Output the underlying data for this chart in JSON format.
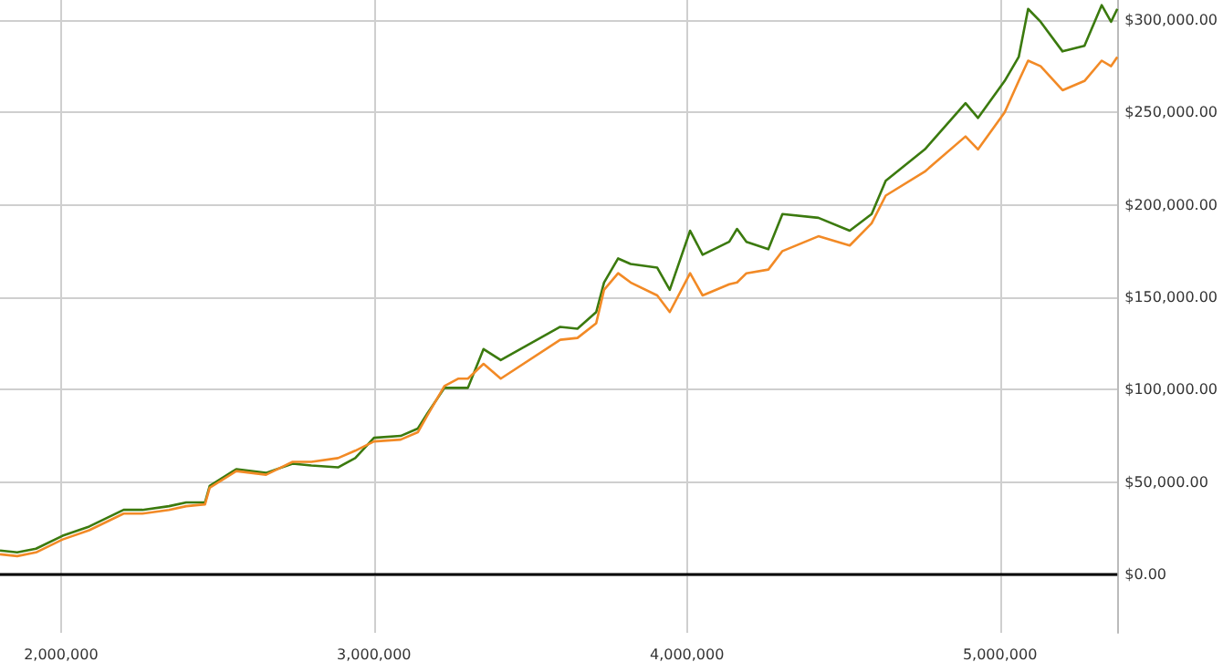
{
  "chart_data": {
    "type": "line",
    "x": [
      1805000,
      1860000,
      1920000,
      2005000,
      2090000,
      2200000,
      2260000,
      2345000,
      2400000,
      2460000,
      2475000,
      2560000,
      2655000,
      2740000,
      2800000,
      2885000,
      2940000,
      3000000,
      3085000,
      3140000,
      3170000,
      3225000,
      3270000,
      3300000,
      3350000,
      3405000,
      3595000,
      3650000,
      3710000,
      3735000,
      3780000,
      3820000,
      3905000,
      3945000,
      4010000,
      4050000,
      4135000,
      4160000,
      4190000,
      4260000,
      4305000,
      4420000,
      4520000,
      4590000,
      4635000,
      4760000,
      4890000,
      4930000,
      5015000,
      5060000,
      5090000,
      5130000,
      5200000,
      5270000,
      5325000,
      5355000,
      5375000
    ],
    "series": [
      {
        "color": "#3b7a0e",
        "values": [
          13000,
          12000,
          14000,
          21000,
          26000,
          35000,
          35000,
          37000,
          39000,
          39000,
          48000,
          57000,
          55000,
          60000,
          59000,
          58000,
          63000,
          74000,
          75000,
          79000,
          87000,
          101000,
          101000,
          101000,
          122000,
          116000,
          134000,
          133000,
          142000,
          158000,
          171000,
          168000,
          166000,
          154000,
          186000,
          173000,
          180000,
          187000,
          180000,
          176000,
          195000,
          193000,
          186000,
          195000,
          213000,
          230000,
          255000,
          247000,
          267000,
          280000,
          306000,
          299000,
          283000,
          286000,
          308000,
          299000,
          306000
        ]
      },
      {
        "color": "#f28a26",
        "values": [
          11000,
          10000,
          12000,
          19000,
          24000,
          33000,
          33000,
          35000,
          37000,
          38000,
          47000,
          56000,
          54000,
          61000,
          61000,
          63000,
          67000,
          72000,
          73000,
          77000,
          86000,
          102000,
          106000,
          106000,
          114000,
          106000,
          127000,
          128000,
          136000,
          154000,
          163000,
          158000,
          151000,
          142000,
          163000,
          151000,
          157000,
          158000,
          163000,
          165000,
          175000,
          183000,
          178000,
          190000,
          205000,
          218000,
          237000,
          230000,
          250000,
          267000,
          278000,
          275000,
          262000,
          267000,
          278000,
          275000,
          280000
        ]
      }
    ],
    "xlim": [
      1805000,
      5375000
    ],
    "xticks": [
      {
        "value": 2000000,
        "label": "2,000,000"
      },
      {
        "value": 3000000,
        "label": "3,000,000"
      },
      {
        "value": 4000000,
        "label": "4,000,000"
      },
      {
        "value": 5000000,
        "label": "5,000,000"
      }
    ],
    "ylim": [
      -31500,
      310800
    ],
    "yticks": [
      {
        "value": 0,
        "label": "$0.00"
      },
      {
        "value": 50000,
        "label": "$50,000.00"
      },
      {
        "value": 100000,
        "label": "$100,000.00"
      },
      {
        "value": 150000,
        "label": "$150,000.00"
      },
      {
        "value": 200000,
        "label": "$200,000.00"
      },
      {
        "value": 250000,
        "label": "$250,000.00"
      },
      {
        "value": 300000,
        "label": "$300,000.00"
      }
    ],
    "ref_lines": [
      {
        "axis": "y",
        "value": 0,
        "color": "#000000"
      }
    ],
    "grid": true,
    "marker": "none",
    "line_style": "solid"
  }
}
